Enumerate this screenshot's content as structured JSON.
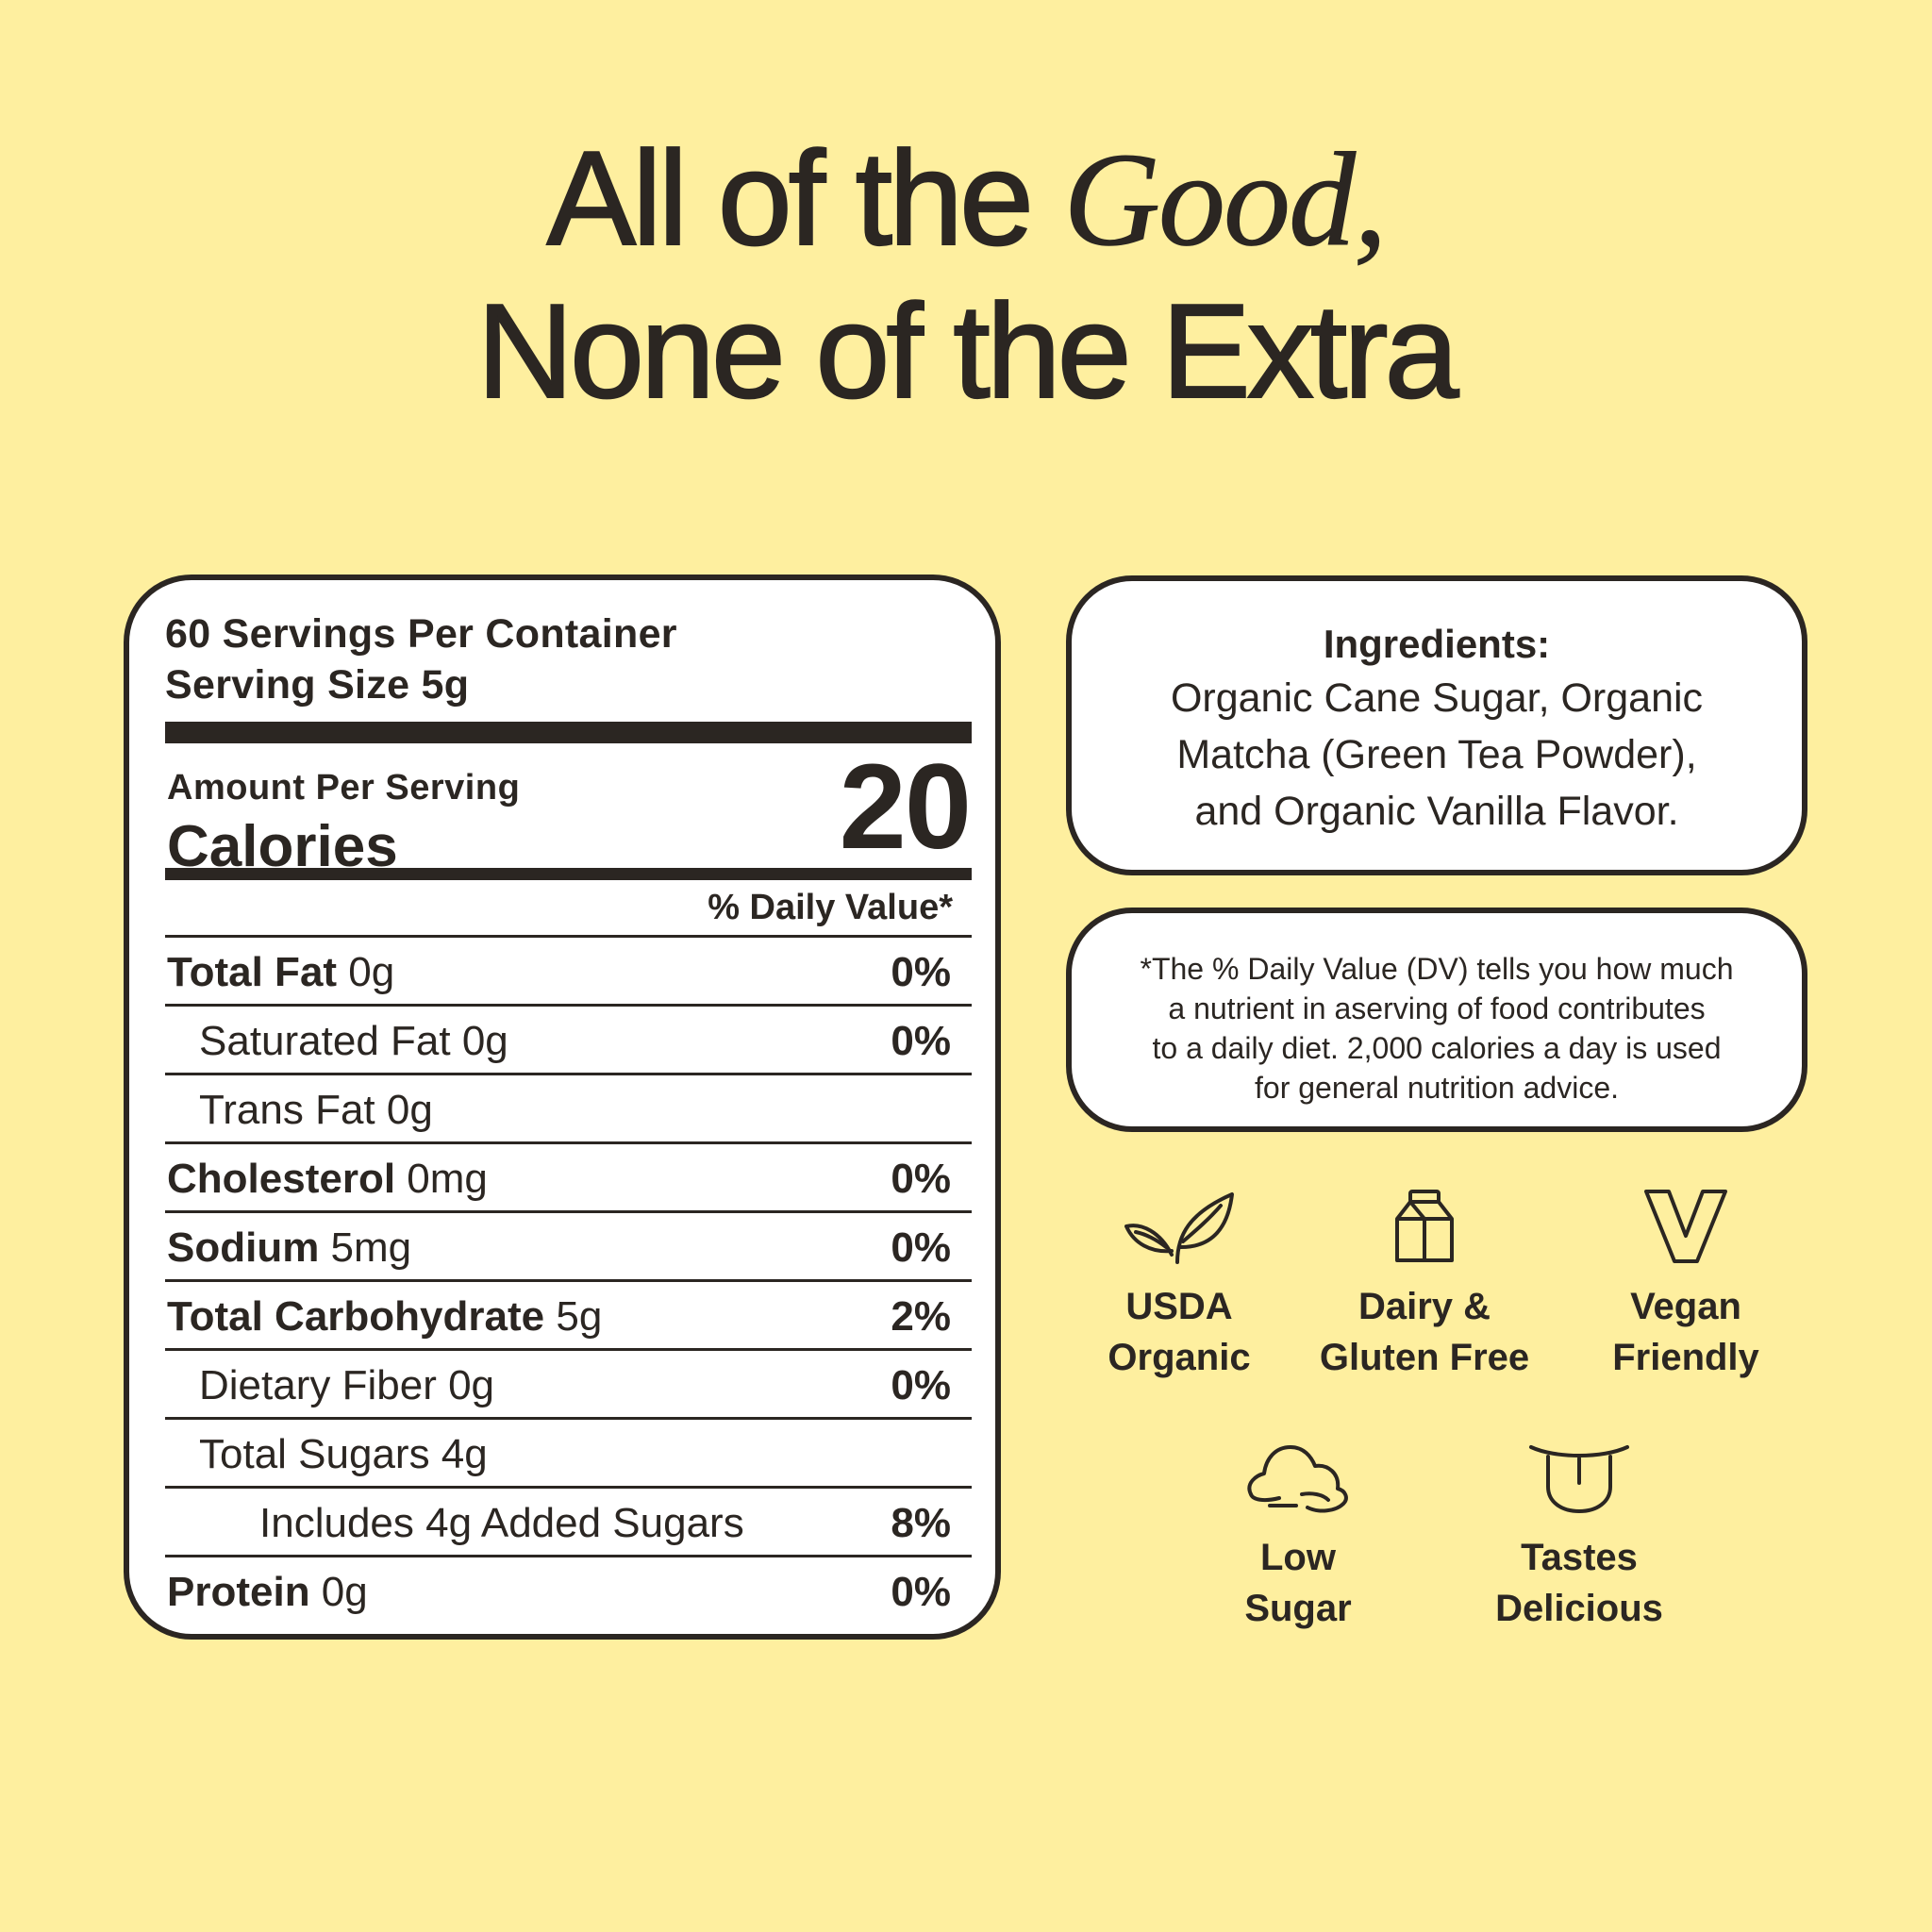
{
  "headline": {
    "line1_prefix": "All of the ",
    "line1_italic": "Good,",
    "line2": "None of the Extra"
  },
  "nutrition": {
    "servings_per_container": "60 Servings Per Container",
    "serving_size": "Serving Size 5g",
    "amount_per_serving": "Amount Per Serving",
    "calories_label": "Calories",
    "calories_value": "20",
    "daily_value_header": "% Daily Value*",
    "rows": [
      {
        "name": "Total Fat",
        "amount": " 0g",
        "dv": "0%"
      },
      {
        "name": "Saturated Fat 0g",
        "amount": "",
        "dv": "0%"
      },
      {
        "name": "Trans Fat 0g",
        "amount": "",
        "dv": ""
      },
      {
        "name": "Cholesterol",
        "amount": " 0mg",
        "dv": "0%"
      },
      {
        "name": "Sodium",
        "amount": " 5mg",
        "dv": "0%"
      },
      {
        "name": "Total Carbohydrate",
        "amount": " 5g",
        "dv": "2%"
      },
      {
        "name": "Dietary Fiber 0g",
        "amount": "",
        "dv": "0%"
      },
      {
        "name": "Total Sugars 4g",
        "amount": "",
        "dv": ""
      },
      {
        "name": "Includes 4g Added Sugars",
        "amount": "",
        "dv": "8%"
      },
      {
        "name": "Protein",
        "amount": " 0g",
        "dv": "0%"
      }
    ]
  },
  "ingredients": {
    "title": "Ingredients:",
    "line1": "Organic Cane Sugar, Organic",
    "line2": "Matcha (Green Tea Powder),",
    "line3": "and Organic Vanilla Flavor."
  },
  "dv_note": {
    "line1": "*The % Daily Value (DV) tells you how much",
    "line2": "a nutrient in aserving of food contributes",
    "line3": "to a daily diet. 2,000 calories a day is used",
    "line4": "for general nutrition advice."
  },
  "badges": [
    {
      "icon": "leaf-icon",
      "line1": "USDA",
      "line2": "Organic"
    },
    {
      "icon": "milk-carton-icon",
      "line1": "Dairy &",
      "line2": "Gluten Free"
    },
    {
      "icon": "v-icon",
      "line1": "Vegan",
      "line2": "Friendly"
    },
    {
      "icon": "sugar-pile-icon",
      "line1": "Low",
      "line2": "Sugar"
    },
    {
      "icon": "tongue-icon",
      "line1": "Tastes",
      "line2": "Delicious"
    }
  ],
  "colors": {
    "background": "#FEEF9F",
    "ink": "#2B2622",
    "panel": "#FFFFFF"
  }
}
